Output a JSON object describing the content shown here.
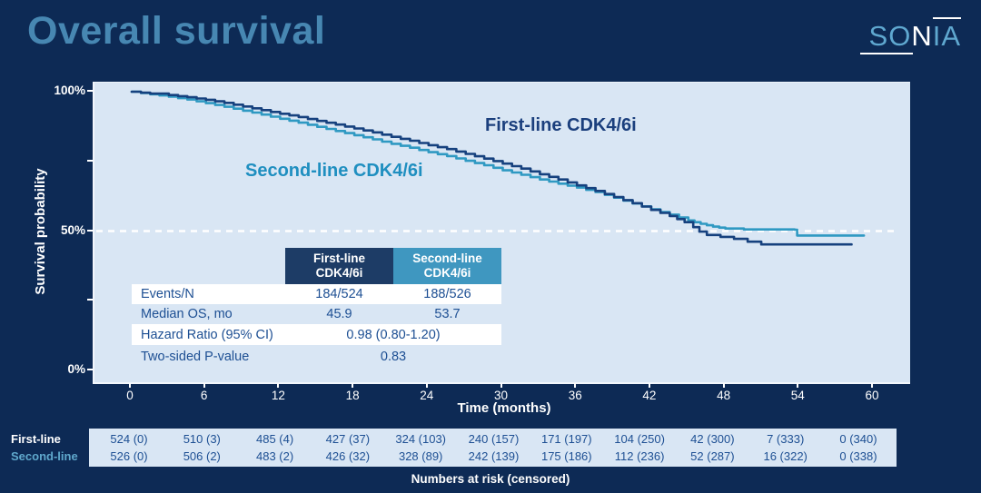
{
  "header": {
    "title": "Overall survival",
    "logo": {
      "so": "SO",
      "n": "N",
      "ia": "IA"
    }
  },
  "colors": {
    "background": "#0d2a55",
    "plot_background": "#d9e6f4",
    "title": "#4787b2",
    "first_line": "#16417e",
    "second_line": "#2f99c2",
    "first_line_label": "#1b3f7d",
    "second_line_label": "#1f8fc0",
    "header_navy": "#1d3c66",
    "header_teal": "#3f97c0",
    "table_text": "#1d4f93",
    "axis_text": "#ffffff",
    "reference_line": "#ffffff"
  },
  "chart_data": {
    "type": "line",
    "subtype": "kaplan-meier-step",
    "title": "Overall survival",
    "xlabel": "Time (months)",
    "ylabel": "Survival probability",
    "xlim": [
      0,
      63
    ],
    "ylim": [
      0,
      100
    ],
    "x_ticks": [
      0,
      6,
      12,
      18,
      24,
      30,
      36,
      42,
      48,
      54,
      60
    ],
    "y_tick_labels": [
      {
        "text": "100%",
        "pct": 100
      },
      {
        "text": "50%",
        "pct": 50
      },
      {
        "text": "0%",
        "pct": 0
      }
    ],
    "y_minor_tick_pcts": [
      100,
      75,
      50,
      25,
      0
    ],
    "grid": false,
    "reference_line": {
      "y_pct": 50,
      "style": "dashed",
      "color": "#ffffff"
    },
    "series": [
      {
        "name": "First-line CDK4/6i",
        "color": "#16417e",
        "points": [
          [
            0,
            100
          ],
          [
            1.5,
            99.3
          ],
          [
            3,
            98.8
          ],
          [
            4.5,
            98.0
          ],
          [
            6,
            97.1
          ],
          [
            7.5,
            96.0
          ],
          [
            9,
            94.7
          ],
          [
            10.5,
            93.4
          ],
          [
            12,
            92.1
          ],
          [
            13.5,
            90.9
          ],
          [
            15,
            89.5
          ],
          [
            16.5,
            88.2
          ],
          [
            18,
            86.8
          ],
          [
            19.5,
            85.4
          ],
          [
            21,
            83.8
          ],
          [
            22.5,
            82.4
          ],
          [
            24,
            80.8
          ],
          [
            25.5,
            79.4
          ],
          [
            27,
            77.7
          ],
          [
            28.5,
            76.0
          ],
          [
            30,
            74.2
          ],
          [
            31.5,
            72.4
          ],
          [
            33,
            70.4
          ],
          [
            34.5,
            68.5
          ],
          [
            36,
            66.4
          ],
          [
            37.5,
            64.4
          ],
          [
            39,
            62.2
          ],
          [
            40.5,
            60.0
          ],
          [
            42,
            57.6
          ],
          [
            43.5,
            55.4
          ],
          [
            44.7,
            53.2
          ],
          [
            45.4,
            51.4
          ],
          [
            45.9,
            49.8
          ],
          [
            46.5,
            48.6
          ],
          [
            48.7,
            47.2
          ],
          [
            50.9,
            45.2
          ],
          [
            58.2,
            45.2
          ]
        ]
      },
      {
        "name": "Second-line CDK4/6i",
        "color": "#2f99c2",
        "points": [
          [
            0,
            100
          ],
          [
            1.5,
            99.1
          ],
          [
            3,
            98.2
          ],
          [
            4.5,
            97.2
          ],
          [
            6,
            95.9
          ],
          [
            7.5,
            94.6
          ],
          [
            9,
            93.2
          ],
          [
            10.5,
            91.8
          ],
          [
            12,
            90.3
          ],
          [
            13.5,
            88.9
          ],
          [
            15,
            87.4
          ],
          [
            16.5,
            85.9
          ],
          [
            18,
            84.4
          ],
          [
            19.5,
            82.9
          ],
          [
            21,
            81.3
          ],
          [
            22.5,
            79.9
          ],
          [
            24,
            78.3
          ],
          [
            25.5,
            76.9
          ],
          [
            27,
            75.2
          ],
          [
            28.5,
            73.6
          ],
          [
            30,
            71.8
          ],
          [
            31.5,
            70.2
          ],
          [
            33,
            68.5
          ],
          [
            34.5,
            67.0
          ],
          [
            36,
            65.6
          ],
          [
            37.5,
            64.0
          ],
          [
            39,
            62.0
          ],
          [
            40.5,
            59.9
          ],
          [
            42,
            57.8
          ],
          [
            43.5,
            55.9
          ],
          [
            45,
            53.8
          ],
          [
            46,
            52.6
          ],
          [
            47,
            51.6
          ],
          [
            48,
            50.9
          ],
          [
            49.5,
            50.6
          ],
          [
            53.6,
            50.5
          ],
          [
            53.8,
            48.4
          ],
          [
            59.2,
            48.4
          ]
        ]
      }
    ]
  },
  "stats_table": {
    "column_headers": [
      {
        "line1": "First-line",
        "line2": "CDK4/6i",
        "bg": "#1d3c66"
      },
      {
        "line1": "Second-line",
        "line2": "CDK4/6i",
        "bg": "#3f97c0"
      }
    ],
    "rows": [
      {
        "label": "Events/N",
        "values": [
          "184/524",
          "188/526"
        ],
        "span": false,
        "white_bg": true
      },
      {
        "label": "Median OS, mo",
        "values": [
          "45.9",
          "53.7"
        ],
        "span": false,
        "white_bg": false
      },
      {
        "label": "Hazard Ratio (95% CI)",
        "values": [
          "0.98 (0.80-1.20)"
        ],
        "span": true,
        "white_bg": true
      },
      {
        "label": "Two-sided P-value",
        "values": [
          "0.83"
        ],
        "span": true,
        "white_bg": false
      }
    ]
  },
  "risk_table": {
    "caption": "Numbers at risk (censored)",
    "rows": [
      {
        "label": "First-line",
        "label_color": "#ffffff",
        "values": [
          "524 (0)",
          "510 (3)",
          "485 (4)",
          "427 (37)",
          "324 (103)",
          "240 (157)",
          "171 (197)",
          "104 (250)",
          "42 (300)",
          "7 (333)",
          "0 (340)"
        ]
      },
      {
        "label": "Second-line",
        "label_color": "#5fa8cc",
        "values": [
          "526 (0)",
          "506 (2)",
          "483 (2)",
          "426 (32)",
          "328 (89)",
          "242 (139)",
          "175 (186)",
          "112 (236)",
          "52 (287)",
          "16 (322)",
          "0 (338)"
        ]
      }
    ]
  }
}
